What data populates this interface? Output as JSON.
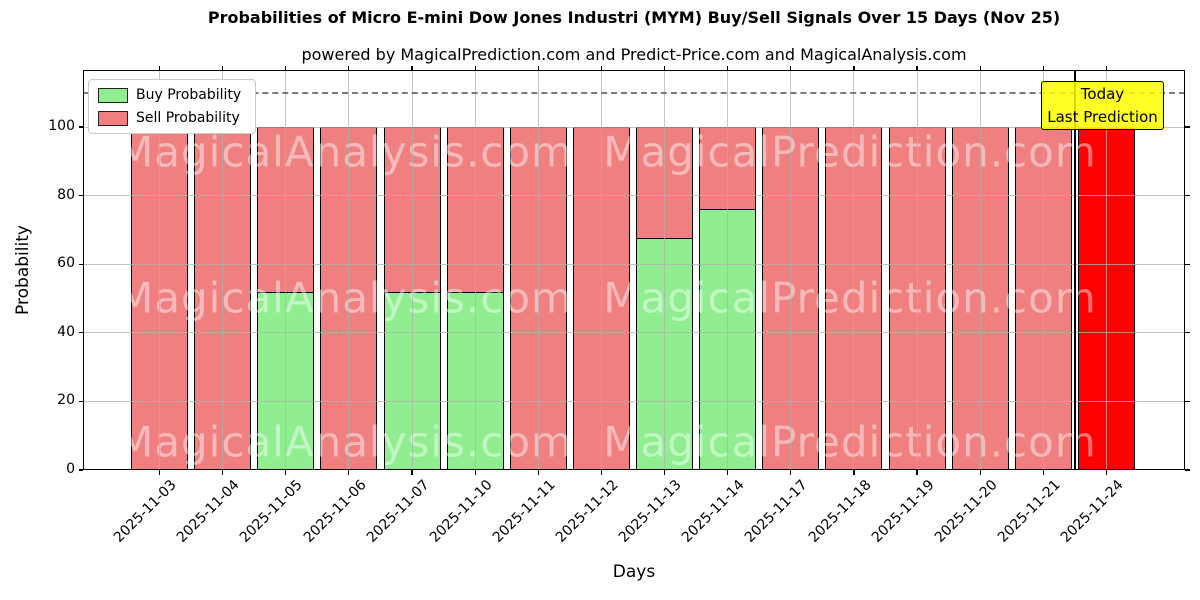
{
  "header": {
    "title": "Probabilities of Micro E-mini Dow Jones Industri (MYM) Buy/Sell Signals Over 15 Days (Nov 25)",
    "subtitle": "powered by MagicalPrediction.com and Predict-Price.com and MagicalAnalysis.com"
  },
  "annotation": {
    "line1": "Today",
    "line2": "Last Prediction",
    "bg_color": "#FFFF00"
  },
  "watermarks": {
    "left": "MagicalAnalysis.com",
    "right": "MagicalPrediction.com"
  },
  "chart_data": {
    "type": "bar",
    "stacked": true,
    "title": "Probabilities of Micro E-mini Dow Jones Industri (MYM) Buy/Sell Signals Over 15 Days (Nov 25)",
    "subtitle": "powered by MagicalPrediction.com and Predict-Price.com and MagicalAnalysis.com",
    "xlabel": "Days",
    "ylabel": "Probability",
    "ylim": [
      0,
      116.6
    ],
    "yticks": [
      0,
      20,
      40,
      60,
      80,
      100
    ],
    "grid": true,
    "dashed_line_y": 110,
    "legend_position": "upper left",
    "categories": [
      "2025-11-03",
      "2025-11-04",
      "2025-11-05",
      "2025-11-06",
      "2025-11-07",
      "2025-11-10",
      "2025-11-11",
      "2025-11-12",
      "2025-11-13",
      "2025-11-14",
      "2025-11-17",
      "2025-11-18",
      "2025-11-19",
      "2025-11-20",
      "2025-11-21",
      "2025-11-24"
    ],
    "series": [
      {
        "name": "Buy Probability",
        "color": "#90EE90",
        "values": [
          0,
          0,
          52,
          0,
          52,
          52,
          0,
          0,
          67.5,
          76,
          0,
          0,
          0,
          0,
          0,
          0
        ]
      },
      {
        "name": "Sell Probability",
        "color": "#F08080",
        "values": [
          100,
          100,
          48,
          100,
          48,
          48,
          100,
          100,
          32.5,
          24,
          100,
          100,
          100,
          100,
          100,
          100
        ]
      }
    ],
    "bar_edge_color": "#000000",
    "today_bar": {
      "category": "2025-11-24",
      "index": 15,
      "sell_color": "#FF0000"
    },
    "separator_between": [
      "2025-11-21",
      "2025-11-24"
    ]
  }
}
